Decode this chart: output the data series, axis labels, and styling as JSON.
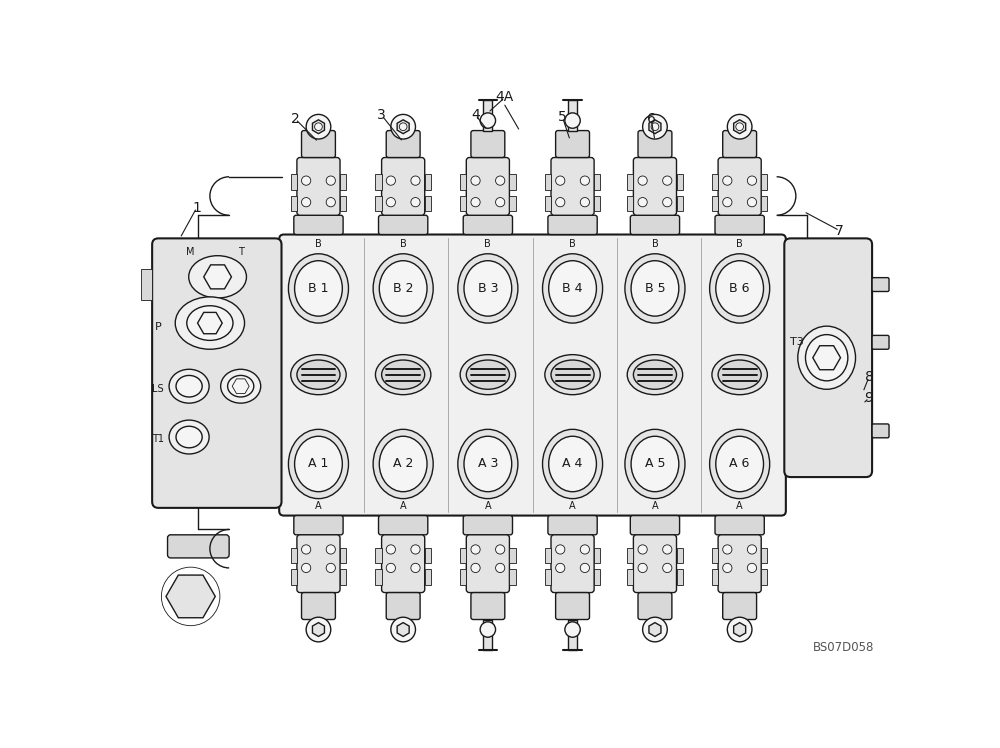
{
  "bg_color": "#ffffff",
  "lc": "#1a1a1a",
  "fc_body": "#f0f0f0",
  "fc_dark": "#d8d8d8",
  "fc_mid": "#e4e4e4",
  "fc_light": "#f5f5f5",
  "watermark": "BS07D058",
  "spool_labels_B": [
    "B 1",
    "B 2",
    "B 3",
    "B 4",
    "B 5",
    "B 6"
  ],
  "spool_labels_A": [
    "A 1",
    "A 2",
    "A 3",
    "A 4",
    "A 5",
    "A 6"
  ],
  "fig_width": 10.0,
  "fig_height": 7.48,
  "dpi": 100
}
